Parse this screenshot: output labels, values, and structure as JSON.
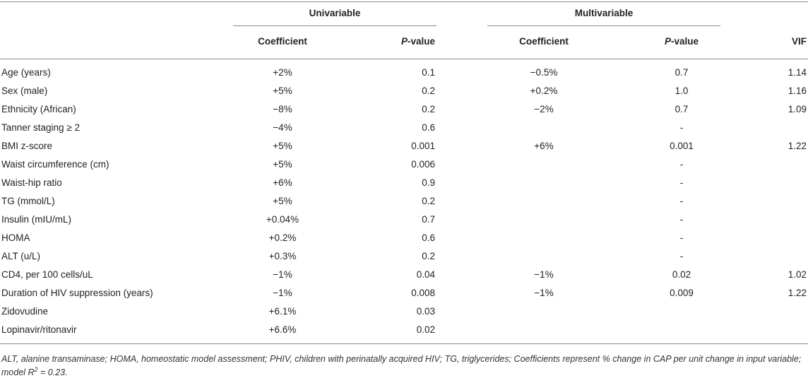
{
  "header": {
    "group_univariable": "Univariable",
    "group_multivariable": "Multivariable",
    "columns": {
      "uni_coef": "Coefficient",
      "uni_p_prefix": "P",
      "uni_p_suffix": "-value",
      "multi_coef": "Coefficient",
      "multi_p_prefix": "P",
      "multi_p_suffix": "-value",
      "vif": "VIF"
    }
  },
  "rows": [
    {
      "label": "Age (years)",
      "uni_coef": "+2%",
      "uni_p": "0.1",
      "multi_coef": "−0.5%",
      "multi_p": "0.7",
      "vif": "1.14"
    },
    {
      "label": "Sex (male)",
      "uni_coef": "+5%",
      "uni_p": "0.2",
      "multi_coef": "+0.2%",
      "multi_p": "1.0",
      "vif": "1.16"
    },
    {
      "label": "Ethnicity (African)",
      "uni_coef": "−8%",
      "uni_p": "0.2",
      "multi_coef": "−2%",
      "multi_p": "0.7",
      "vif": "1.09"
    },
    {
      "label": "Tanner staging ≥ 2",
      "uni_coef": "−4%",
      "uni_p": "0.6",
      "multi_coef": "",
      "multi_p": "-",
      "vif": ""
    },
    {
      "label": "BMI z-score",
      "uni_coef": "+5%",
      "uni_p": "0.001",
      "multi_coef": "+6%",
      "multi_p": "0.001",
      "vif": "1.22"
    },
    {
      "label": "Waist circumference (cm)",
      "uni_coef": "+5%",
      "uni_p": "0.006",
      "multi_coef": "",
      "multi_p": "-",
      "vif": ""
    },
    {
      "label": "Waist-hip ratio",
      "uni_coef": "+6%",
      "uni_p": "0.9",
      "multi_coef": "",
      "multi_p": "-",
      "vif": ""
    },
    {
      "label": "TG (mmol/L)",
      "uni_coef": "+5%",
      "uni_p": "0.2",
      "multi_coef": "",
      "multi_p": "-",
      "vif": ""
    },
    {
      "label": "Insulin (mIU/mL)",
      "uni_coef": "+0.04%",
      "uni_p": "0.7",
      "multi_coef": "",
      "multi_p": "-",
      "vif": ""
    },
    {
      "label": "HOMA",
      "uni_coef": "+0.2%",
      "uni_p": "0.6",
      "multi_coef": "",
      "multi_p": "-",
      "vif": ""
    },
    {
      "label": "ALT (u/L)",
      "uni_coef": "+0.3%",
      "uni_p": "0.2",
      "multi_coef": "",
      "multi_p": "-",
      "vif": ""
    },
    {
      "label": "CD4, per 100 cells/uL",
      "uni_coef": "−1%",
      "uni_p": "0.04",
      "multi_coef": "−1%",
      "multi_p": "0.02",
      "vif": "1.02"
    },
    {
      "label": "Duration of HIV suppression (years)",
      "uni_coef": "−1%",
      "uni_p": "0.008",
      "multi_coef": "−1%",
      "multi_p": "0.009",
      "vif": "1.22"
    },
    {
      "label": "Zidovudine",
      "uni_coef": "+6.1%",
      "uni_p": "0.03",
      "multi_coef": "",
      "multi_p": "",
      "vif": ""
    },
    {
      "label": "Lopinavir/ritonavir",
      "uni_coef": "+6.6%",
      "uni_p": "0.02",
      "multi_coef": "",
      "multi_p": "",
      "vif": ""
    }
  ],
  "footnote": {
    "text": "ALT, alanine transaminase; HOMA, homeostatic model assessment; PHIV, children with perinatally acquired HIV; TG, triglycerides; Coefficients represent % change in CAP per unit change in input variable; model R",
    "sup": "2",
    "tail": " = 0.23."
  }
}
